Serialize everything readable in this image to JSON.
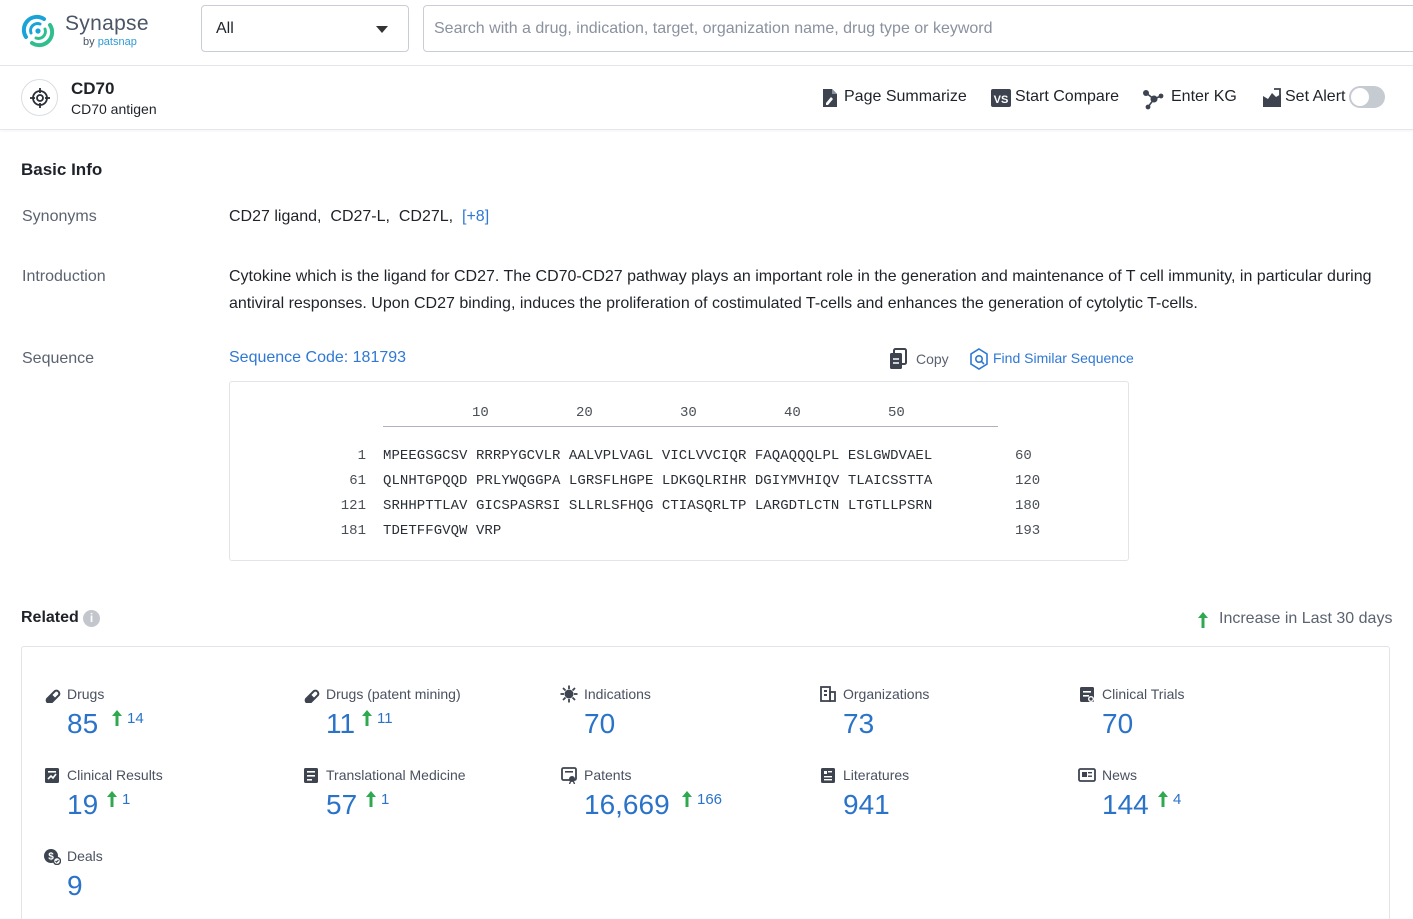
{
  "header": {
    "brand": "Synapse",
    "brand_sub_prefix": "by",
    "brand_sub_name": "patsnap",
    "scope_value": "All",
    "search_placeholder": "Search with a drug, indication, target, organization name, drug type or keyword"
  },
  "target": {
    "name": "CD70",
    "full_name": "CD70 antigen",
    "actions": {
      "summarize": "Page Summarize",
      "compare": "Start Compare",
      "kg": "Enter KG",
      "alert": "Set Alert"
    },
    "alert_on": false
  },
  "basic_info": {
    "title": "Basic Info",
    "synonyms_label": "Synonyms",
    "synonyms": [
      "CD27 ligand,",
      "CD27-L,",
      "CD27L,"
    ],
    "synonyms_more": "[+8]",
    "intro_label": "Introduction",
    "intro": "Cytokine which is the ligand for CD27. The CD70-CD27 pathway plays an important role in the generation and maintenance of T cell immunity, in particular during antiviral responses. Upon CD27 binding, induces the proliferation of costimulated T-cells and enhances the generation of cytolytic T-cells.",
    "sequence_label": "Sequence",
    "sequence_code": "Sequence Code: 181793",
    "copy_label": "Copy",
    "similar_label": "Find Similar Sequence",
    "ruler": [
      "10",
      "20",
      "30",
      "40",
      "50"
    ],
    "rows": [
      {
        "start": "1",
        "residues": "MPEEGSGCSV RRRPYGCVLR AALVPLVAGL VICLVVCIQR FAQAQQQLPL ESLGWDVAEL",
        "end": "60"
      },
      {
        "start": "61",
        "residues": "QLNHTGPQQD PRLYWQGGPA LGRSFLHGPE LDKGQLRIHR DGIYMVHIQV TLAICSSTTA",
        "end": "120"
      },
      {
        "start": "121",
        "residues": "SRHHPTTLAV GICSPASRSI SLLRLSFHQG CTIASQRLTP LARGDTLCTN LTGTLLPSRN",
        "end": "180"
      },
      {
        "start": "181",
        "residues": "TDETFFGVQW VRP",
        "end": "193"
      }
    ]
  },
  "related": {
    "title": "Related",
    "info_glyph": "i",
    "legend": "Increase in Last 30 days",
    "up_color": "#2fa84f",
    "accent": "#2a73c9",
    "stats": [
      {
        "name": "Drugs",
        "value": "85",
        "inc": "14",
        "icon": "pill-icon"
      },
      {
        "name": "Drugs (patent mining)",
        "value": "11",
        "inc": "11",
        "icon": "pill-icon"
      },
      {
        "name": "Indications",
        "value": "70",
        "inc": "",
        "icon": "virus-icon"
      },
      {
        "name": "Organizations",
        "value": "73",
        "inc": "",
        "icon": "building-icon"
      },
      {
        "name": "Clinical Trials",
        "value": "70",
        "inc": "",
        "icon": "clipboard-icon"
      },
      {
        "name": "Clinical Results",
        "value": "19",
        "inc": "1",
        "icon": "results-icon"
      },
      {
        "name": "Translational Medicine",
        "value": "57",
        "inc": "1",
        "icon": "document-icon"
      },
      {
        "name": "Patents",
        "value": "16,669",
        "inc": "166",
        "icon": "patent-icon"
      },
      {
        "name": "Literatures",
        "value": "941",
        "inc": "",
        "icon": "literature-icon"
      },
      {
        "name": "News",
        "value": "144",
        "inc": "4",
        "icon": "news-icon"
      },
      {
        "name": "Deals",
        "value": "9",
        "inc": "",
        "icon": "deal-icon"
      }
    ]
  }
}
